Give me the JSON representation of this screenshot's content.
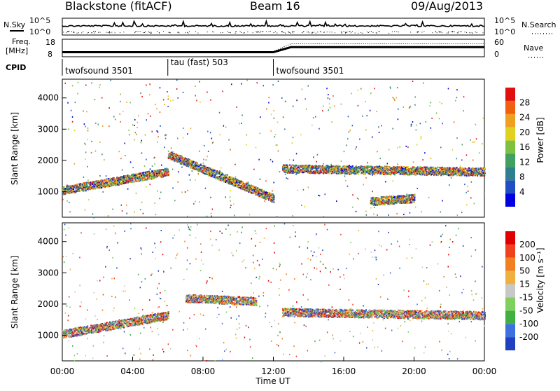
{
  "header": {
    "station": "Blackstone (fitACF)",
    "beam": "Beam 16",
    "date": "09/Aug/2013"
  },
  "top_panels": {
    "nsky_label": "N.Sky",
    "nsky_ticks": [
      "10^5",
      "10^0"
    ],
    "nsearch_label": "N.Search",
    "nsearch_ticks": [
      "10^5",
      "10^0"
    ],
    "freq_label_1": "Freq.",
    "freq_label_2": "[MHz]",
    "freq_ticks": [
      "18",
      "8"
    ],
    "nave_label": "Nave",
    "nave_ticks": [
      "60",
      "0"
    ],
    "cpid_label": "CPID"
  },
  "chart_data": [
    {
      "type": "table",
      "title": "CPID",
      "segments": [
        {
          "start_hour": 0,
          "end_hour": 6,
          "name": "twofsound 3501"
        },
        {
          "start_hour": 6,
          "end_hour": 12,
          "name": "tau (fast) 503"
        },
        {
          "start_hour": 12,
          "end_hour": 24,
          "name": "twofsound 3501"
        }
      ]
    },
    {
      "type": "line",
      "title": "Freq. / Nave",
      "x": [
        0,
        6,
        12,
        13,
        24
      ],
      "freq_mhz": [
        10.5,
        10.5,
        10.5,
        14.5,
        14.5
      ],
      "nave": [
        15,
        15,
        15,
        45,
        45
      ]
    },
    {
      "type": "heatmap",
      "ylabel": "Slant Range [km]",
      "yticks": [
        1000,
        2000,
        3000,
        4000
      ],
      "ylim": [
        180,
        4600
      ],
      "xlim": [
        0,
        24
      ],
      "colorbar_label": "Power [dB]",
      "colorbar_ticks": [
        "28",
        "24",
        "20",
        "16",
        "12",
        "8",
        "4"
      ],
      "colors": [
        "#0000e0",
        "#1f4fc0",
        "#2f7f8f",
        "#3fa060",
        "#80c040",
        "#e0d020",
        "#f0a020",
        "#f06010",
        "#e01010"
      ],
      "bands": [
        {
          "from_hour": 0,
          "to_hour": 6,
          "range_start_km": 1050,
          "range_end_km": 1650,
          "level": 26
        },
        {
          "from_hour": 6,
          "to_hour": 12,
          "range_start_km": 2200,
          "range_end_km": 800,
          "level": 20
        },
        {
          "from_hour": 12.5,
          "to_hour": 24,
          "range_start_km": 1750,
          "range_end_km": 1650,
          "level": 24
        },
        {
          "from_hour": 17.5,
          "to_hour": 20,
          "range_start_km": 700,
          "range_end_km": 800,
          "level": 16
        }
      ]
    },
    {
      "type": "heatmap",
      "ylabel": "Slant Range [km]",
      "xlabel": "Time UT",
      "xticks": [
        "00:00",
        "04:00",
        "08:00",
        "12:00",
        "16:00",
        "20:00",
        "00:00"
      ],
      "yticks": [
        1000,
        2000,
        3000,
        4000
      ],
      "ylim": [
        180,
        4600
      ],
      "xlim": [
        0,
        24
      ],
      "colorbar_label": "Velocity [m s⁻¹]",
      "colorbar_ticks": [
        "200",
        "100",
        "50",
        "15",
        "-15",
        "-50",
        "-100",
        "-200"
      ],
      "colors": [
        "#2040c0",
        "#3f70e0",
        "#40b040",
        "#80d060",
        "#c8c8c8",
        "#f0b040",
        "#f08020",
        "#f04020",
        "#e00000"
      ],
      "bands": [
        {
          "from_hour": 0,
          "to_hour": 6,
          "range_start_km": 1050,
          "range_end_km": 1650,
          "velocity": -10
        },
        {
          "from_hour": 7,
          "to_hour": 11,
          "range_start_km": 2200,
          "range_end_km": 2100,
          "velocity": -150
        },
        {
          "from_hour": 12.5,
          "to_hour": 24,
          "range_start_km": 1750,
          "range_end_km": 1650,
          "velocity": 0
        }
      ]
    }
  ]
}
